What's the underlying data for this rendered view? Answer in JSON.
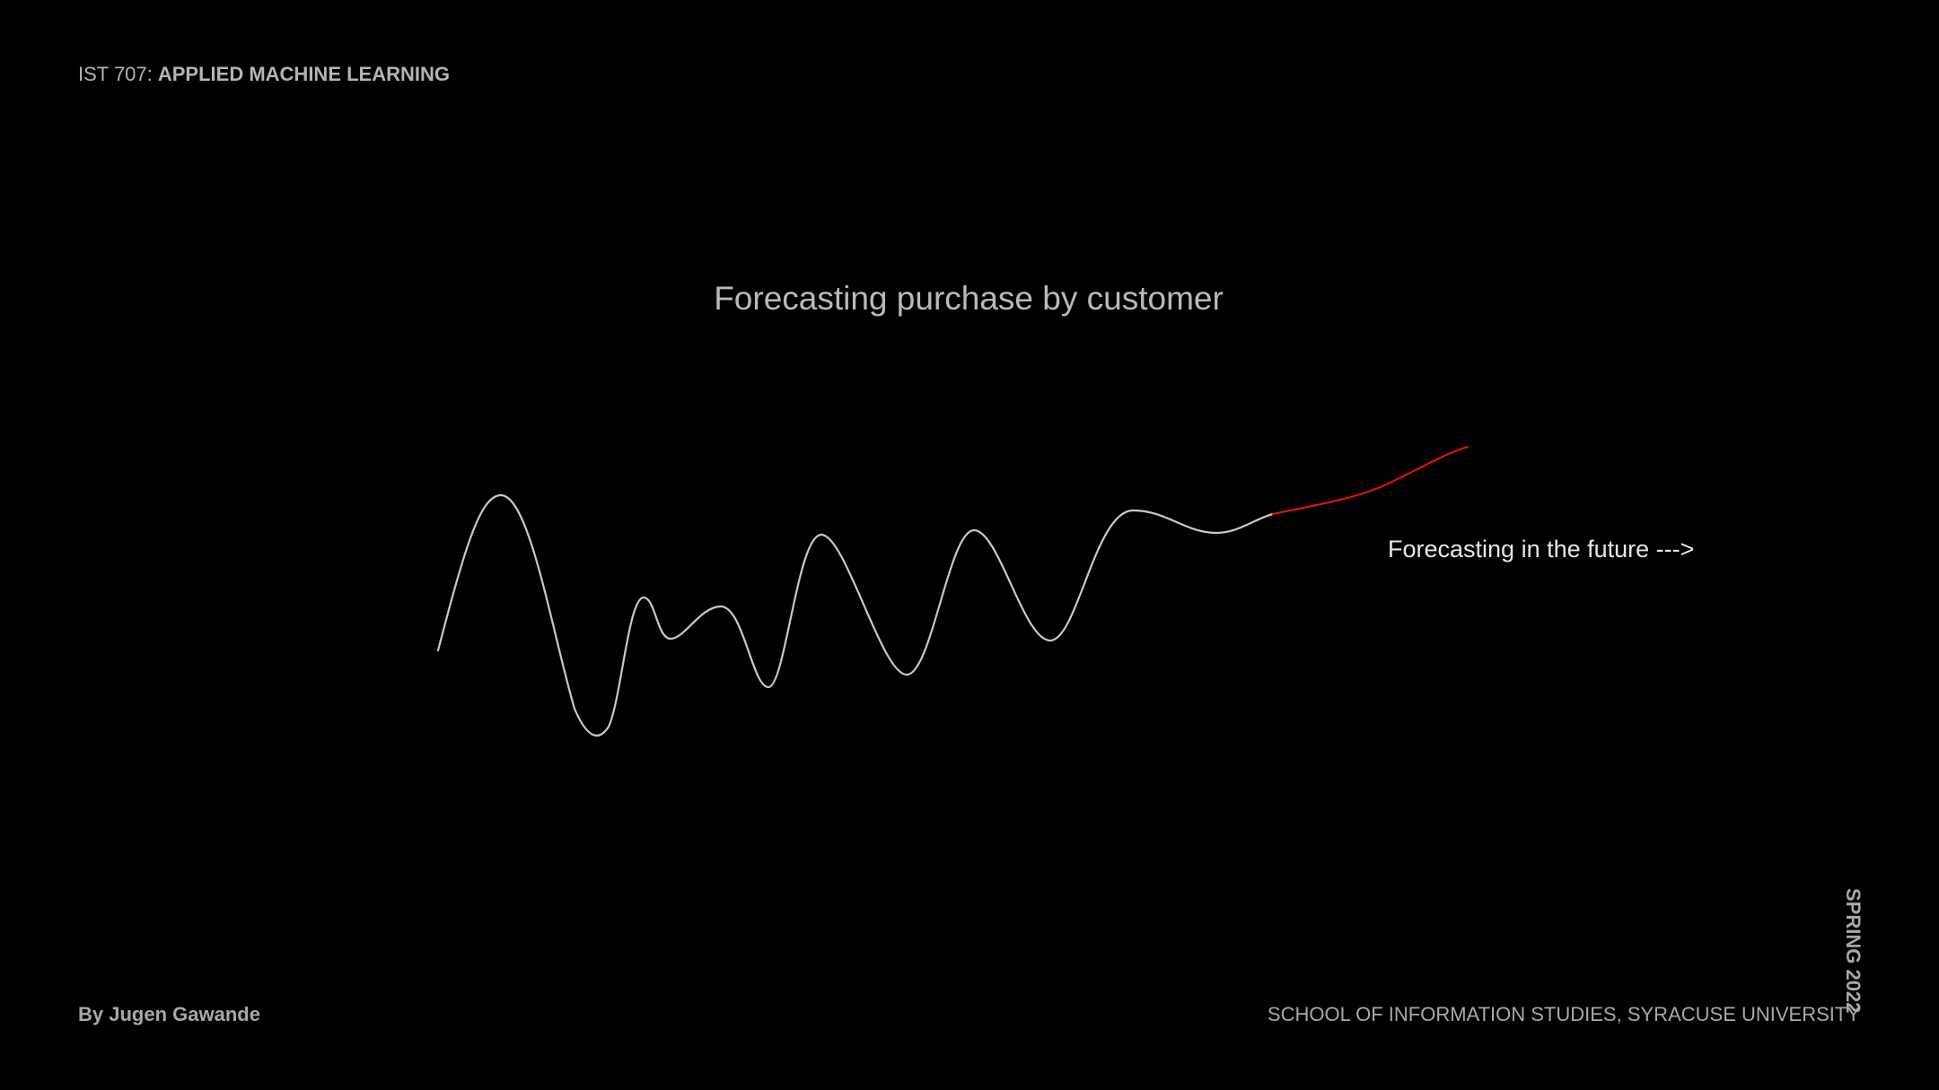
{
  "header": {
    "course_code": "IST 707: ",
    "course_name": "APPLIED MACHINE LEARNING"
  },
  "title": "Forecasting purchase by customer",
  "annotation": "Forecasting in the future --->",
  "footer": {
    "author": "By Jugen Gawande",
    "institution": "SCHOOL OF INFORMATION STUDIES, SYRACUSE UNIVERSITY",
    "semester": "SPRING 2022"
  },
  "colors": {
    "history_line": "#c8c8c8",
    "forecast_line": "#e01010",
    "background": "#000000"
  }
}
